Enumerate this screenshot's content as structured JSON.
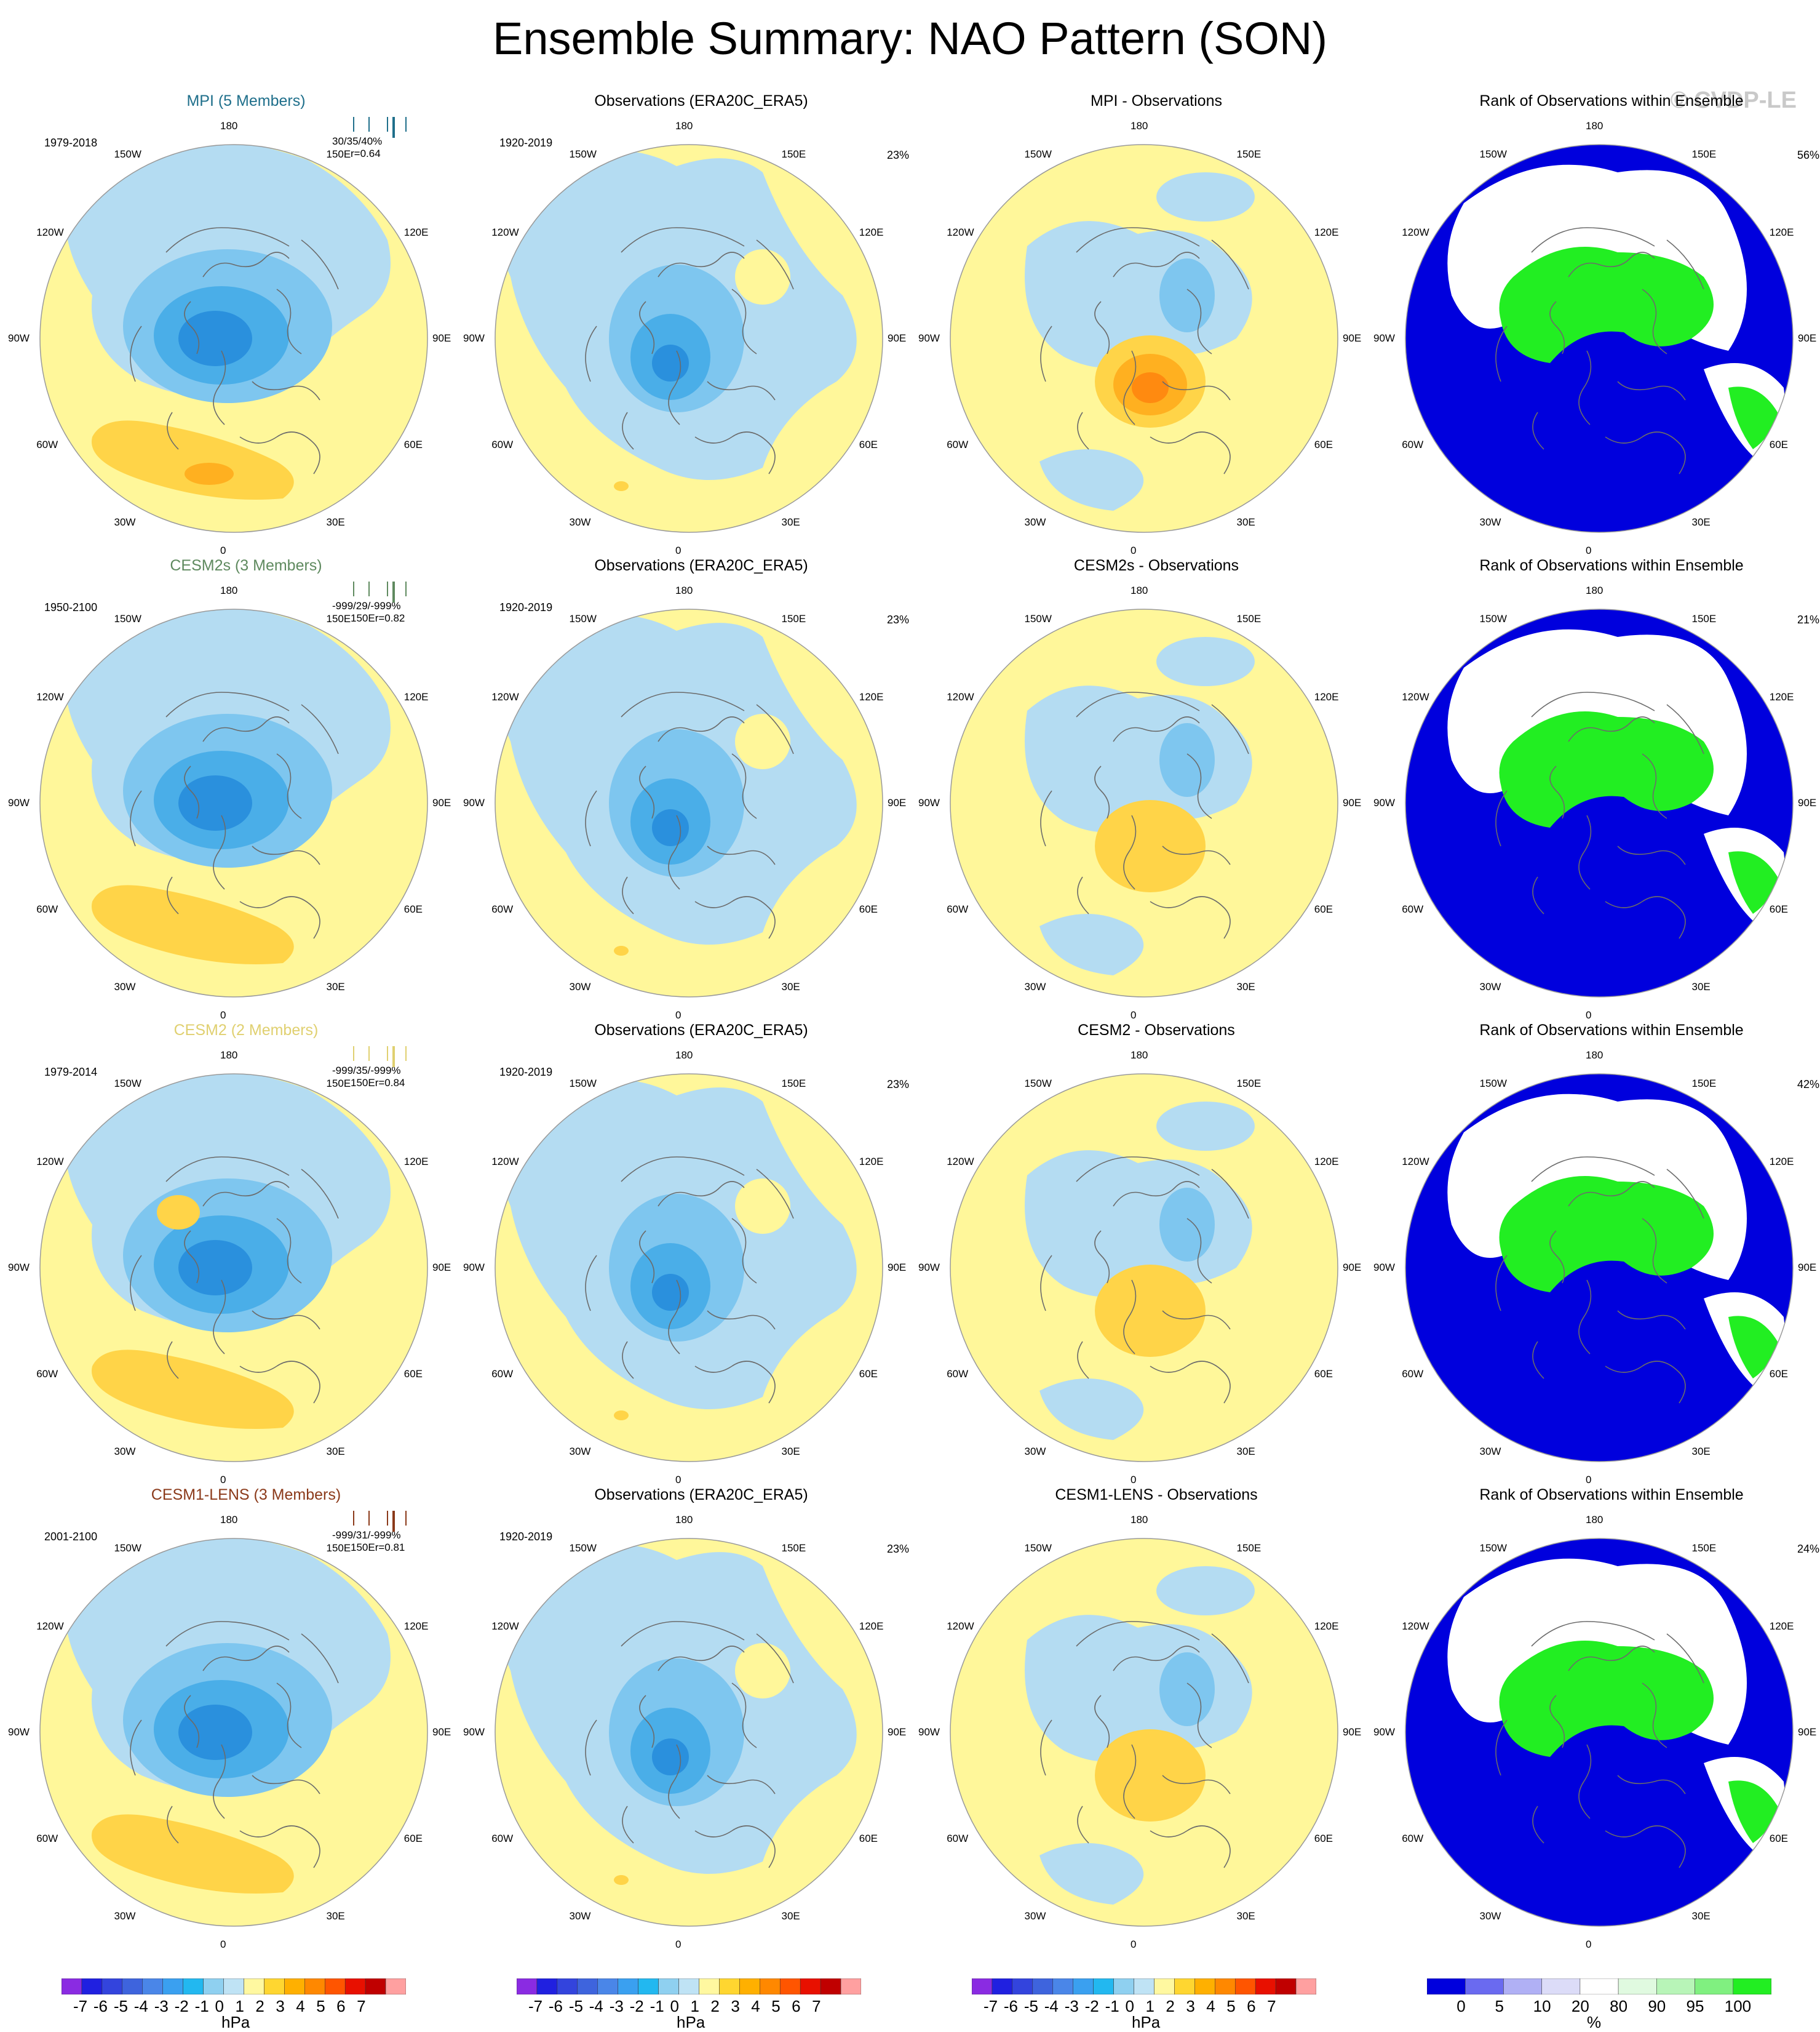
{
  "title": "Ensemble Summary: NAO Pattern (SON)",
  "copyright": "© CVDP-LE",
  "lon_labels": [
    "180",
    "150E",
    "120E",
    "90E",
    "60E",
    "30E",
    "0",
    "30W",
    "60W",
    "90W",
    "120W",
    "150W"
  ],
  "rows": [
    {
      "model": {
        "title": "MPI (5 Members)",
        "color": "#1f6f8b",
        "period": "1979-2018",
        "stats_line1": "30/35/40%",
        "stats_line2": "r=0.64"
      },
      "obs": {
        "title": "Observations (ERA20C_ERA5)",
        "period": "1920-2019",
        "pct": "23%"
      },
      "diff": {
        "title": "MPI - Observations"
      },
      "rank": {
        "title": "Rank of Observations within Ensemble",
        "pct": "56%"
      }
    },
    {
      "model": {
        "title": "CESM2s (3 Members)",
        "color": "#5f8a5f",
        "period": "1950-2100",
        "stats_line1": "-999/29/-999%",
        "stats_line2": "150Er=0.82"
      },
      "obs": {
        "title": "Observations (ERA20C_ERA5)",
        "period": "1920-2019",
        "pct": "23%"
      },
      "diff": {
        "title": "CESM2s - Observations"
      },
      "rank": {
        "title": "Rank of Observations within Ensemble",
        "pct": "21%"
      }
    },
    {
      "model": {
        "title": "CESM2 (2 Members)",
        "color": "#e0d070",
        "period": "1979-2014",
        "stats_line1": "-999/35/-999%",
        "stats_line2": "150Er=0.84"
      },
      "obs": {
        "title": "Observations (ERA20C_ERA5)",
        "period": "1920-2019",
        "pct": "23%"
      },
      "diff": {
        "title": "CESM2 - Observations"
      },
      "rank": {
        "title": "Rank of Observations within Ensemble",
        "pct": "42%"
      }
    },
    {
      "model": {
        "title": "CESM1-LENS (3 Members)",
        "color": "#8b3a1a",
        "period": "2001-2100",
        "stats_line1": "-999/31/-999%",
        "stats_line2": "150Er=0.81"
      },
      "obs": {
        "title": "Observations (ERA20C_ERA5)",
        "period": "1920-2019",
        "pct": "23%"
      },
      "diff": {
        "title": "CESM1-LENS - Observations"
      },
      "rank": {
        "title": "Rank of Observations within Ensemble",
        "pct": "24%"
      }
    }
  ],
  "colorbar_hpa": {
    "unit": "hPa",
    "ticks": [
      "-7",
      "-6",
      "-5",
      "-4",
      "-3",
      "-2",
      "-1",
      "0",
      "1",
      "2",
      "3",
      "4",
      "5",
      "6",
      "7"
    ],
    "colors": [
      "#8a2be2",
      "#2020e0",
      "#3344dd",
      "#3e64dd",
      "#4a86e8",
      "#3aa0f0",
      "#22b8f0",
      "#8fd0f0",
      "#bfe3f5",
      "#fff8a0",
      "#ffd630",
      "#ffb000",
      "#ff8800",
      "#ff5500",
      "#e81000",
      "#c00000",
      "#ffa0a0"
    ]
  },
  "colorbar_rank": {
    "unit": "%",
    "ticks": [
      "0",
      "5",
      "10",
      "20",
      "80",
      "90",
      "95",
      "100"
    ],
    "colors": [
      "#0000dd",
      "#6a6af0",
      "#b0b0f5",
      "#dcdcf8",
      "#ffffff",
      "#e0fae0",
      "#b8f5b8",
      "#80f080",
      "#22ee22"
    ]
  },
  "chart_data": {
    "type": "heatmap",
    "title": "Ensemble Summary: NAO Pattern (SON)",
    "projection": "north polar stereographic",
    "variable": "NAO pattern",
    "units": "hPa",
    "contour_levels": [
      -7,
      -6,
      -5,
      -4,
      -3,
      -2,
      -1,
      0,
      1,
      2,
      3,
      4,
      5,
      6,
      7
    ],
    "rank_levels_percent": [
      0,
      5,
      10,
      20,
      80,
      90,
      95,
      100
    ],
    "panels": [
      {
        "row": 1,
        "kind": "ensemble mean",
        "name": "MPI (5 Members)",
        "period": "1979-2018",
        "stats": "30/35/40%",
        "r": 0.64
      },
      {
        "row": 1,
        "kind": "observations",
        "name": "Observations (ERA20C_ERA5)",
        "period": "1920-2019",
        "pct": 23
      },
      {
        "row": 1,
        "kind": "difference",
        "name": "MPI - Observations"
      },
      {
        "row": 1,
        "kind": "rank",
        "name": "Rank of Observations within Ensemble",
        "pct": 56
      },
      {
        "row": 2,
        "kind": "ensemble mean",
        "name": "CESM2s (3 Members)",
        "period": "1950-2100",
        "stats": "-999/29/-999%",
        "r": 0.82
      },
      {
        "row": 2,
        "kind": "observations",
        "name": "Observations (ERA20C_ERA5)",
        "period": "1920-2019",
        "pct": 23
      },
      {
        "row": 2,
        "kind": "difference",
        "name": "CESM2s - Observations"
      },
      {
        "row": 2,
        "kind": "rank",
        "name": "Rank of Observations within Ensemble",
        "pct": 21
      },
      {
        "row": 3,
        "kind": "ensemble mean",
        "name": "CESM2 (2 Members)",
        "period": "1979-2014",
        "stats": "-999/35/-999%",
        "r": 0.84
      },
      {
        "row": 3,
        "kind": "observations",
        "name": "Observations (ERA20C_ERA5)",
        "period": "1920-2019",
        "pct": 23
      },
      {
        "row": 3,
        "kind": "difference",
        "name": "CESM2 - Observations"
      },
      {
        "row": 3,
        "kind": "rank",
        "name": "Rank of Observations within Ensemble",
        "pct": 42
      },
      {
        "row": 4,
        "kind": "ensemble mean",
        "name": "CESM1-LENS (3 Members)",
        "period": "2001-2100",
        "stats": "-999/31/-999%",
        "r": 0.81
      },
      {
        "row": 4,
        "kind": "observations",
        "name": "Observations (ERA20C_ERA5)",
        "period": "1920-2019",
        "pct": 23
      },
      {
        "row": 4,
        "kind": "difference",
        "name": "CESM1-LENS - Observations"
      },
      {
        "row": 4,
        "kind": "rank",
        "name": "Rank of Observations within Ensemble",
        "pct": 24
      }
    ]
  }
}
